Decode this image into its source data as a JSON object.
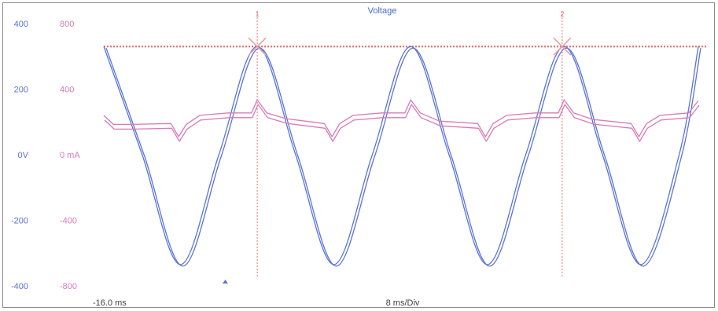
{
  "chart_data": {
    "type": "line",
    "title": "Voltage",
    "x_start_label": "-16.0 ms",
    "timebase_label": "8 ms/Div",
    "x_unit": "ms",
    "xlim": [
      -16.0,
      46.0
    ],
    "voltage_axis": {
      "ticks": [
        {
          "value": 400,
          "label": "400"
        },
        {
          "value": 200,
          "label": "200"
        },
        {
          "value": 0,
          "label": "0V"
        },
        {
          "value": -200,
          "label": "-200"
        },
        {
          "value": -400,
          "label": "-400"
        }
      ],
      "ylim": [
        -400,
        400
      ],
      "color": "#5b74d8"
    },
    "current_axis": {
      "ticks": [
        {
          "value": 800,
          "label": "800"
        },
        {
          "value": 400,
          "label": "400"
        },
        {
          "value": 0,
          "label": "0 mA"
        },
        {
          "value": -400,
          "label": "-400"
        },
        {
          "value": -800,
          "label": "-800"
        }
      ],
      "ylim": [
        -800,
        800
      ],
      "color": "#d87ab8"
    },
    "peak_reference_level": 330,
    "reference_color": "#e8736e",
    "cursors": [
      {
        "label": "1",
        "x": 0.0
      },
      {
        "label": "2",
        "x": 31.8
      }
    ],
    "series": [
      {
        "axis": "voltage",
        "color": "#5b74d8",
        "x": [
          -16.0,
          -12.0,
          -8.0,
          -4.0,
          0.0,
          4.0,
          8.0,
          12.0,
          16.0,
          20.0,
          24.0,
          28.0,
          32.0,
          36.0,
          40.0,
          44.0,
          46.0
        ],
        "values": [
          330,
          0,
          -335,
          0,
          330,
          0,
          -335,
          0,
          330,
          0,
          -335,
          0,
          330,
          0,
          -335,
          0,
          330
        ]
      },
      {
        "axis": "current",
        "color": "#d87ab8",
        "x": [
          -16.0,
          -15.0,
          -13.0,
          -9.0,
          -8.2,
          -7.4,
          -6.0,
          -3.0,
          -0.6,
          0.0,
          1.0,
          3.0,
          7.0,
          7.8,
          8.6,
          10.0,
          13.0,
          15.4,
          16.0,
          17.0,
          19.0,
          23.0,
          23.8,
          24.6,
          26.0,
          29.0,
          31.4,
          32.0,
          33.0,
          35.0,
          39.0,
          39.8,
          40.6,
          42.0,
          45.0,
          46.0
        ],
        "values": [
          240,
          185,
          185,
          190,
          110,
          185,
          240,
          255,
          255,
          335,
          255,
          220,
          190,
          110,
          190,
          240,
          255,
          255,
          335,
          255,
          205,
          190,
          110,
          190,
          240,
          255,
          255,
          335,
          255,
          215,
          190,
          110,
          190,
          240,
          255,
          330
        ]
      }
    ]
  }
}
